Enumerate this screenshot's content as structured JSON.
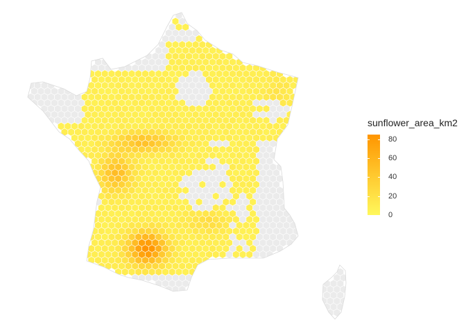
{
  "legend": {
    "title": "sunflower_area_km2",
    "ticks": [
      "80",
      "60",
      "40",
      "20",
      "0"
    ],
    "tick_values": [
      80,
      60,
      40,
      20,
      0
    ],
    "min": 0,
    "max": 85
  },
  "colors": {
    "low": "#FFF85C",
    "high": "#FF9500",
    "no_data": "#EBEBEB",
    "hex_border": "#FFFFFF"
  }
}
